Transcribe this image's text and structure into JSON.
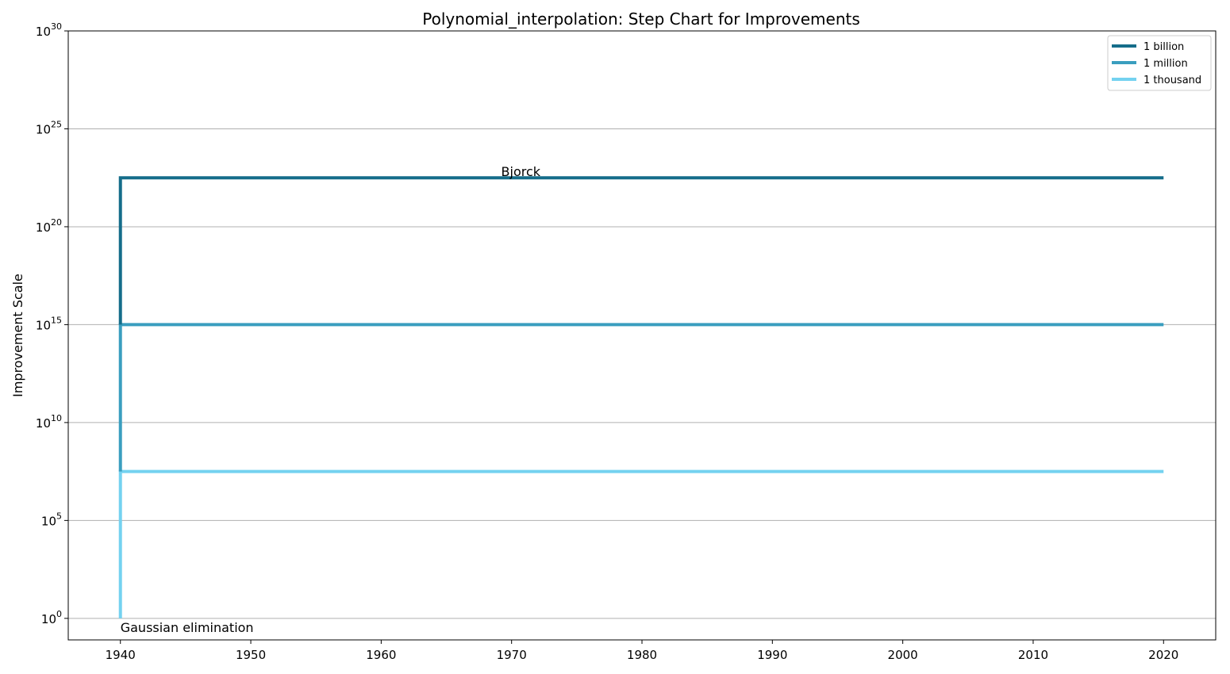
{
  "chart_data": {
    "type": "line",
    "subtype": "step",
    "title": "Polynomial_interpolation: Step Chart for Improvements",
    "xlabel": "",
    "ylabel": "Improvement Scale",
    "xlim": [
      1936,
      2024
    ],
    "ylim_exponent": [
      -1.1,
      30
    ],
    "yscale": "log",
    "x_ticks": [
      "1940",
      "1950",
      "1960",
      "1970",
      "1980",
      "1990",
      "2000",
      "2010",
      "2020"
    ],
    "y_tick_exponents": [
      "0",
      "5",
      "10",
      "15",
      "20",
      "25",
      "30"
    ],
    "y_tick_base": "10",
    "grid": "horizontal",
    "legend_position": "top-right",
    "series": [
      {
        "name": "1 billion",
        "color": "#156d8a",
        "x": [
          1940,
          1940,
          2020
        ],
        "y_exponent": [
          15,
          22.5,
          22.5
        ]
      },
      {
        "name": "1 million",
        "color": "#3a9ebf",
        "x": [
          1940,
          1940,
          2020
        ],
        "y_exponent": [
          7.5,
          15,
          15
        ]
      },
      {
        "name": "1 thousand",
        "color": "#74d2f0",
        "x": [
          1940,
          1940,
          2020
        ],
        "y_exponent": [
          0,
          7.5,
          7.5
        ]
      }
    ],
    "annotations": [
      {
        "text": "Bjorck",
        "x": 1969.2,
        "y_exponent": 23
      },
      {
        "text": "Gaussian elimination",
        "x": 1940,
        "y_exponent": -0.3
      }
    ]
  }
}
